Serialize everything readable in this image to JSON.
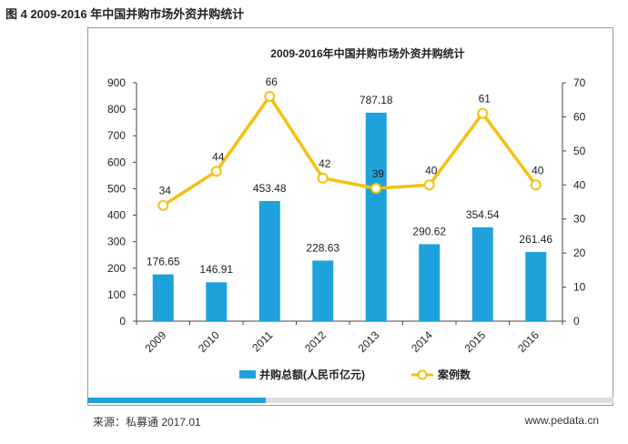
{
  "caption": "图 4 2009-2016 年中国并购市场外资并购统计",
  "footer": {
    "source": "来源：私募通 2017.01",
    "website": "www.pedata.cn"
  },
  "chart_data": {
    "type": "bar",
    "title": "2009-2016年中国并购市场外资并购统计",
    "categories": [
      "2009",
      "2010",
      "2011",
      "2012",
      "2013",
      "2014",
      "2015",
      "2016"
    ],
    "series": [
      {
        "name": "并购总额(人民币亿元)",
        "type": "bar",
        "axis": "left",
        "color": "#1fa2dc",
        "values": [
          176.65,
          146.91,
          453.48,
          228.63,
          787.18,
          290.62,
          354.54,
          261.46
        ],
        "labels": [
          "176.65",
          "146.91",
          "453.48",
          "228.63",
          "787.18",
          "290.62",
          "354.54",
          "261.46"
        ]
      },
      {
        "name": "案例数",
        "type": "line",
        "axis": "right",
        "color": "#f5c013",
        "values": [
          34,
          44,
          66,
          42,
          39,
          40,
          61,
          40
        ],
        "labels": [
          "34",
          "44",
          "66",
          "42",
          "39",
          "40",
          "61",
          "40"
        ]
      }
    ],
    "y_left": {
      "range": [
        0,
        900
      ],
      "ticks": [
        "0",
        "100",
        "200",
        "300",
        "400",
        "500",
        "600",
        "700",
        "800",
        "900"
      ]
    },
    "y_right": {
      "range": [
        0,
        70
      ],
      "ticks": [
        "0",
        "10",
        "20",
        "30",
        "40",
        "50",
        "60",
        "70"
      ]
    },
    "grid": false,
    "legend": "bottom"
  }
}
